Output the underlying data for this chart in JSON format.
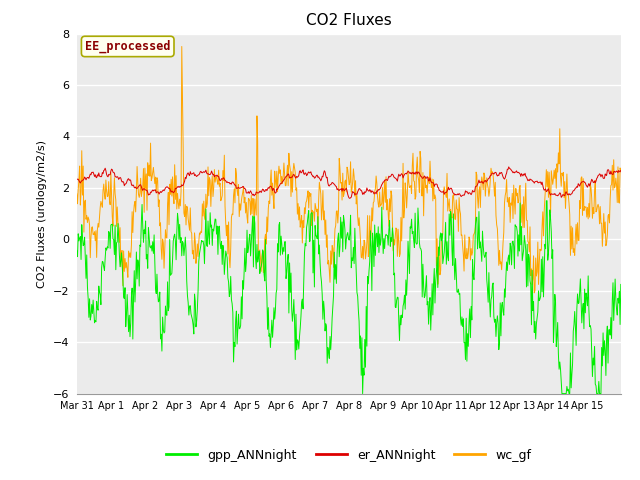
{
  "title": "CO2 Fluxes",
  "ylabel": "CO2 Fluxes (urology/m2/s)",
  "ylim": [
    -6,
    8
  ],
  "yticks": [
    -6,
    -4,
    -2,
    0,
    2,
    4,
    6,
    8
  ],
  "annotation": "EE_processed",
  "annotation_color": "#8B0000",
  "annotation_bg": "#FFFFF0",
  "annotation_border": "#AAAA00",
  "colors": {
    "gpp_ANNnight": "#00EE00",
    "er_ANNnight": "#DD0000",
    "wc_gf": "#FFA500"
  },
  "background_color": "#EBEBEB",
  "date_labels": [
    "Mar 31",
    "Apr 1",
    "Apr 2",
    "Apr 3",
    "Apr 4",
    "Apr 5",
    "Apr 6",
    "Apr 7",
    "Apr 8",
    "Apr 9",
    "Apr 10",
    "Apr 11",
    "Apr 12",
    "Apr 13",
    "Apr 14",
    "Apr 15"
  ],
  "n_days": 16,
  "n_per_day": 48,
  "seed": 7
}
